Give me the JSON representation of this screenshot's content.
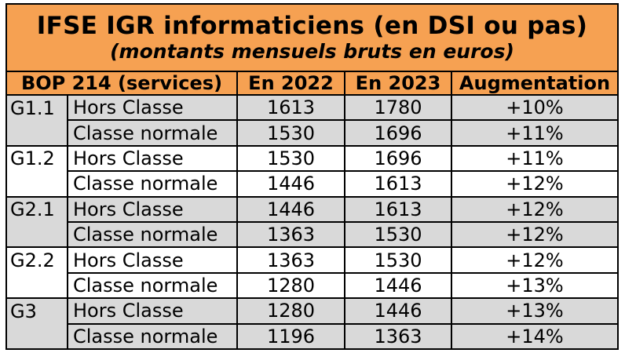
{
  "title": "IFSE IGR informaticiens (en DSI ou pas)",
  "subtitle": "(montants mensuels bruts en euros)",
  "headers": {
    "bop": "BOP 214 (services)",
    "y2022": "En 2022",
    "y2023": "En 2023",
    "aug": "Augmentation"
  },
  "rows": [
    {
      "grade": "G1.1",
      "classe": "Hors Classe",
      "v2022": "1613",
      "v2023": "1780",
      "aug": "+10%"
    },
    {
      "grade": "",
      "classe": "Classe normale",
      "v2022": "1530",
      "v2023": "1696",
      "aug": "+11%"
    },
    {
      "grade": "G1.2",
      "classe": "Hors Classe",
      "v2022": "1530",
      "v2023": "1696",
      "aug": "+11%"
    },
    {
      "grade": "",
      "classe": "Classe normale",
      "v2022": "1446",
      "v2023": "1613",
      "aug": "+12%"
    },
    {
      "grade": "G2.1",
      "classe": "Hors Classe",
      "v2022": "1446",
      "v2023": "1613",
      "aug": "+12%"
    },
    {
      "grade": "",
      "classe": "Classe normale",
      "v2022": "1363",
      "v2023": "1530",
      "aug": "+12%"
    },
    {
      "grade": "G2.2",
      "classe": "Hors Classe",
      "v2022": "1363",
      "v2023": "1530",
      "aug": "+12%"
    },
    {
      "grade": "",
      "classe": "Classe normale",
      "v2022": "1280",
      "v2023": "1446",
      "aug": "+13%"
    },
    {
      "grade": "G3",
      "classe": "Hors Classe",
      "v2022": "1280",
      "v2023": "1446",
      "aug": "+13%"
    },
    {
      "grade": "",
      "classe": "Classe normale",
      "v2022": "1196",
      "v2023": "1363",
      "aug": "+14%"
    }
  ],
  "colors": {
    "header_bg": "#f6a152",
    "gray_row": "#d9d9d9",
    "white_row": "#ffffff"
  }
}
